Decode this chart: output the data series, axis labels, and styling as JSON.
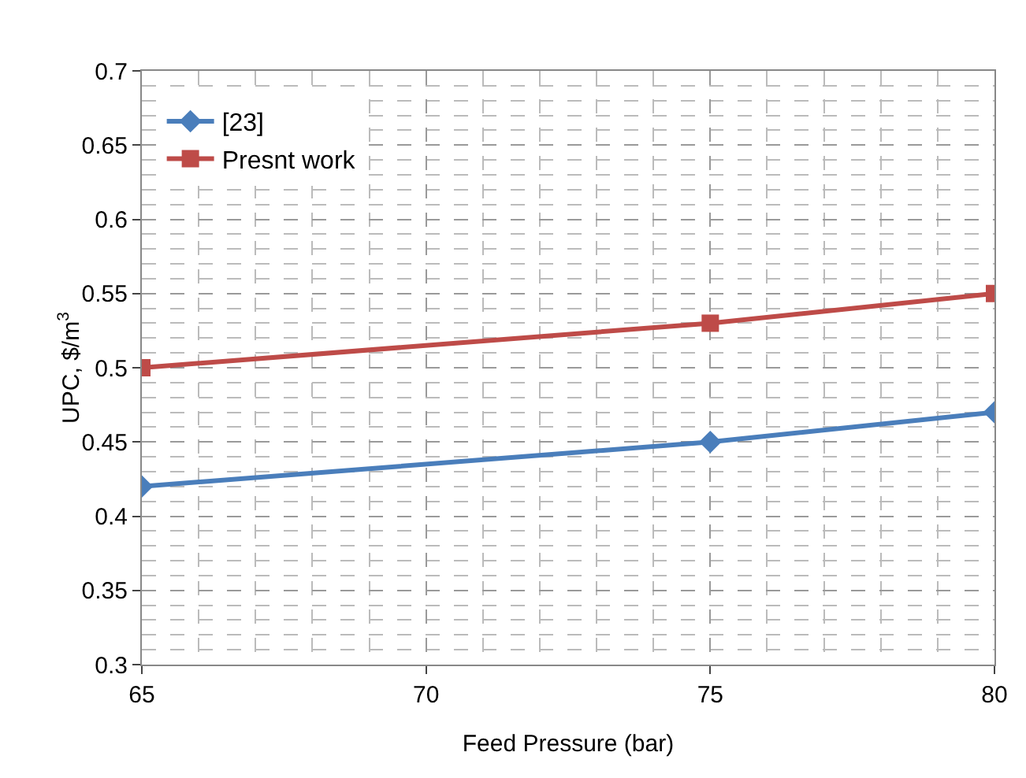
{
  "chart_data": {
    "type": "line",
    "xlabel": "Feed Pressure (bar)",
    "ylabel": "UPC, $/m$^{3}$",
    "x": [
      65,
      75,
      80
    ],
    "series": [
      {
        "name": "[23]",
        "color": "#4a7ebb",
        "values": [
          0.42,
          0.45,
          0.47
        ],
        "marker": "diamond"
      },
      {
        "name": "Presnt work",
        "color": "#be4b48",
        "values": [
          0.5,
          0.53,
          0.55
        ],
        "marker": "square"
      }
    ],
    "xlim": [
      65,
      80
    ],
    "xticks": [
      65,
      70,
      75,
      80
    ],
    "ylim": [
      0.3,
      0.7
    ],
    "yticks": [
      0.3,
      0.35,
      0.4,
      0.45,
      0.5,
      0.55,
      0.6,
      0.65,
      0.7
    ],
    "grid": true,
    "legend": "top left",
    "line_style": "solid"
  }
}
